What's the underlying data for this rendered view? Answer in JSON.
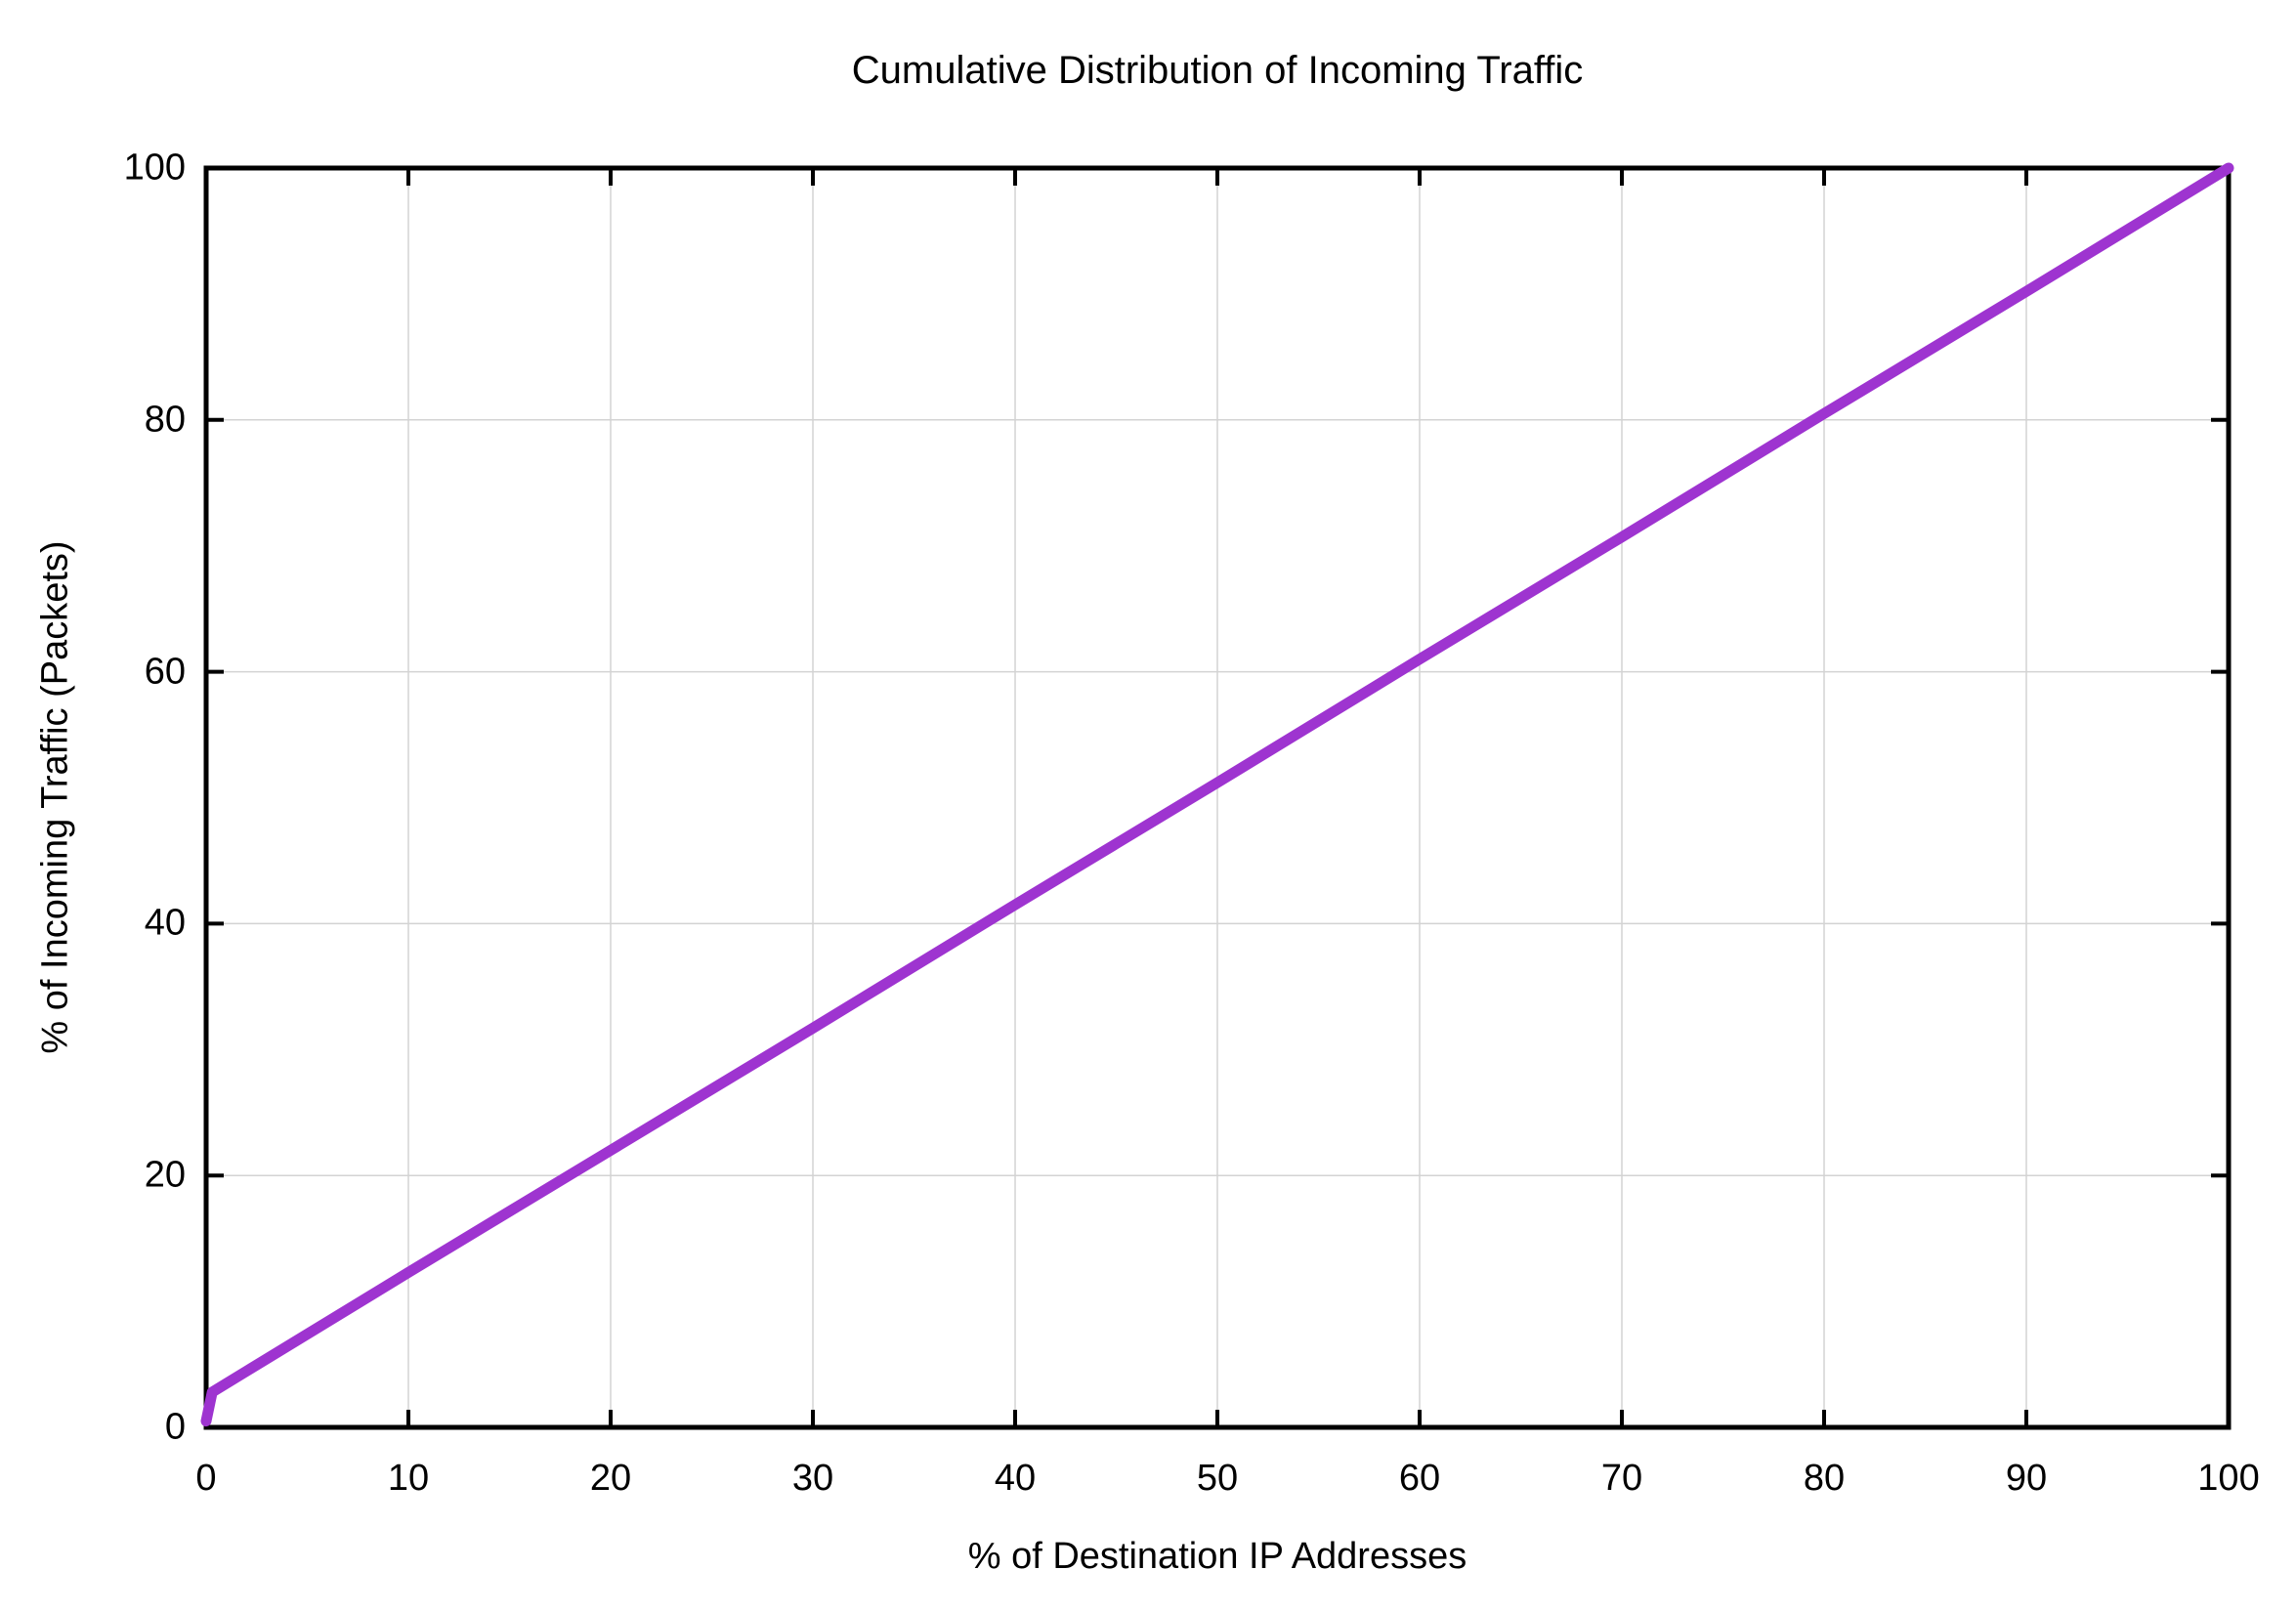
{
  "chart_data": {
    "type": "line",
    "title": "Cumulative Distribution of Incoming Traffic",
    "xlabel": "% of Destination IP Addresses",
    "ylabel": "% of Incoming Traffic (Packets)",
    "xlim": [
      0,
      100
    ],
    "ylim": [
      0,
      100
    ],
    "x_ticks": [
      0,
      10,
      20,
      30,
      40,
      50,
      60,
      70,
      80,
      90,
      100
    ],
    "y_ticks": [
      0,
      20,
      40,
      60,
      80,
      100
    ],
    "grid": true,
    "legend_position": "none",
    "frame": "box-with-mirrored-inside-ticks",
    "colors": {
      "line": "#9E34D0",
      "grid": "#d3d3d3",
      "axis": "#000000",
      "background": "#ffffff"
    },
    "series": [
      {
        "name": "cumulative-incoming-traffic",
        "color": "#9E34D0",
        "line_width": 11,
        "points": [
          [
            0,
            0.5
          ],
          [
            0.3,
            2.8
          ],
          [
            10,
            12.3
          ],
          [
            20,
            22.0
          ],
          [
            30,
            31.7
          ],
          [
            40,
            41.5
          ],
          [
            50,
            51.2
          ],
          [
            60,
            61.0
          ],
          [
            70,
            70.7
          ],
          [
            80,
            80.5
          ],
          [
            90,
            90.2
          ],
          [
            100,
            100
          ]
        ]
      }
    ]
  }
}
